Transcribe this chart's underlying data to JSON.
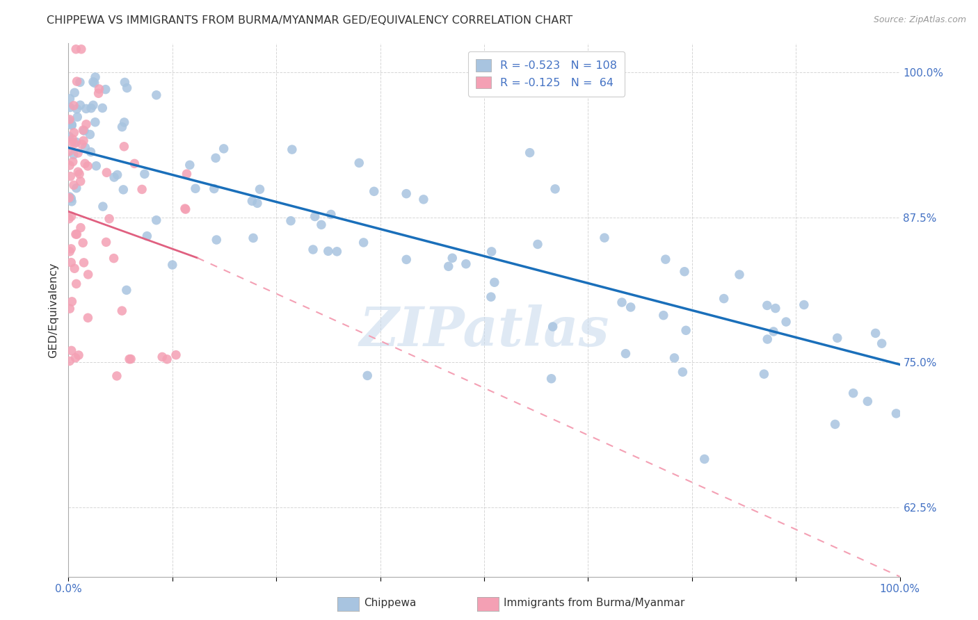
{
  "title": "CHIPPEWA VS IMMIGRANTS FROM BURMA/MYANMAR GED/EQUIVALENCY CORRELATION CHART",
  "source": "Source: ZipAtlas.com",
  "ylabel": "GED/Equivalency",
  "xlabel": "",
  "xlim": [
    0.0,
    1.0
  ],
  "ylim": [
    0.565,
    1.025
  ],
  "yticks": [
    0.625,
    0.75,
    0.875,
    1.0
  ],
  "ytick_labels": [
    "62.5%",
    "75.0%",
    "87.5%",
    "100.0%"
  ],
  "xticks": [
    0.0,
    0.125,
    0.25,
    0.375,
    0.5,
    0.625,
    0.75,
    0.875,
    1.0
  ],
  "xtick_labels": [
    "0.0%",
    "",
    "",
    "",
    "",
    "",
    "",
    "",
    "100.0%"
  ],
  "chippewa_color": "#a8c4e0",
  "burma_color": "#f4a0b4",
  "trend_chippewa_color": "#1a6fba",
  "trend_burma_solid_color": "#e06080",
  "trend_burma_dash_color": "#f4a0b4",
  "R_chippewa": -0.523,
  "N_chippewa": 108,
  "R_burma": -0.125,
  "N_burma": 64,
  "watermark": "ZIPatlas",
  "background_color": "#ffffff",
  "chip_trend_x0": 0.0,
  "chip_trend_y0": 0.935,
  "chip_trend_x1": 1.0,
  "chip_trend_y1": 0.748,
  "burma_trend_solid_x0": 0.0,
  "burma_trend_solid_y0": 0.88,
  "burma_trend_solid_x1": 0.155,
  "burma_trend_solid_y1": 0.84,
  "burma_trend_dash_x0": 0.155,
  "burma_trend_dash_y0": 0.84,
  "burma_trend_dash_x1": 1.0,
  "burma_trend_dash_y1": 0.565
}
